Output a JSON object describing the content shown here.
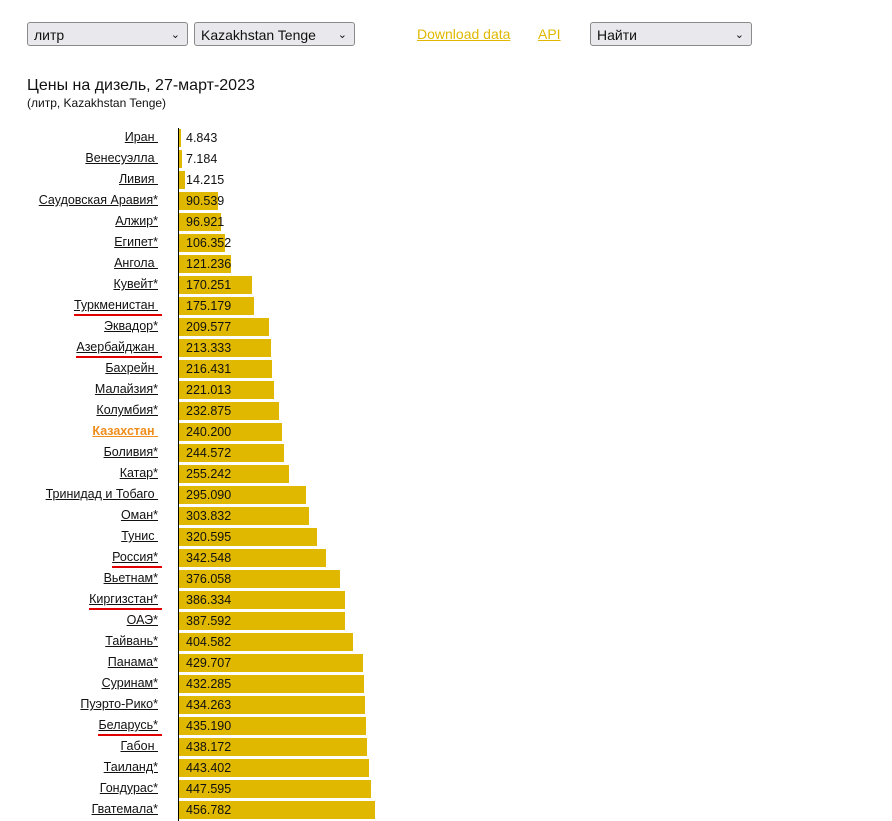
{
  "controls": {
    "unit": "литр",
    "currency": "Kazakhstan Tenge",
    "download": "Download data",
    "api": "API",
    "find": "Найти"
  },
  "colors": {
    "bar": "#e0b800",
    "highlight": "#f08c1a",
    "mark": "#e00000"
  },
  "chart_data": {
    "type": "bar",
    "orientation": "horizontal",
    "title": "Цены на дизель, 27-март-2023",
    "subtitle": "(литр, Kazakhstan Tenge)",
    "categories": [
      "Иран ",
      "Венесуэлла ",
      "Ливия ",
      "Саудовская Аравия*",
      "Алжир*",
      "Египет*",
      "Ангола ",
      "Кувейт*",
      "Туркменистан ",
      "Эквадор*",
      "Азербайджан ",
      "Бахрейн ",
      "Малайзия*",
      "Колумбия*",
      "Казахстан ",
      "Боливия*",
      "Катар*",
      "Тринидад и Тобаго ",
      "Оман*",
      "Тунис ",
      "Россия*",
      "Вьетнам*",
      "Киргизстан*",
      "ОАЭ*",
      "Тайвань*",
      "Панама*",
      "Суринам*",
      "Пуэрто-Рико*",
      "Беларусь*",
      "Габон ",
      "Таиланд*",
      "Гондурас*",
      "Гватемала*"
    ],
    "values": [
      4.843,
      7.184,
      14.215,
      90.539,
      96.921,
      106.352,
      121.236,
      170.251,
      175.179,
      209.577,
      213.333,
      216.431,
      221.013,
      232.875,
      240.2,
      244.572,
      255.242,
      295.09,
      303.832,
      320.595,
      342.548,
      376.058,
      386.334,
      387.592,
      404.582,
      429.707,
      432.285,
      434.263,
      435.19,
      438.172,
      443.402,
      447.595,
      456.782
    ],
    "labels": [
      "4.843",
      "7.184",
      "14.215",
      "90.539",
      "96.921",
      "106.352",
      "121.236",
      "170.251",
      "175.179",
      "209.577",
      "213.333",
      "216.431",
      "221.013",
      "232.875",
      "240.200",
      "244.572",
      "255.242",
      "295.090",
      "303.832",
      "320.595",
      "342.548",
      "376.058",
      "386.334",
      "387.592",
      "404.582",
      "429.707",
      "432.285",
      "434.263",
      "435.190",
      "438.172",
      "443.402",
      "447.595",
      "456.782"
    ],
    "highlighted": "Казахстан ",
    "red_marked": [
      "Туркменистан ",
      "Азербайджан ",
      "Россия*",
      "Киргизстан*",
      "Беларусь*"
    ]
  }
}
